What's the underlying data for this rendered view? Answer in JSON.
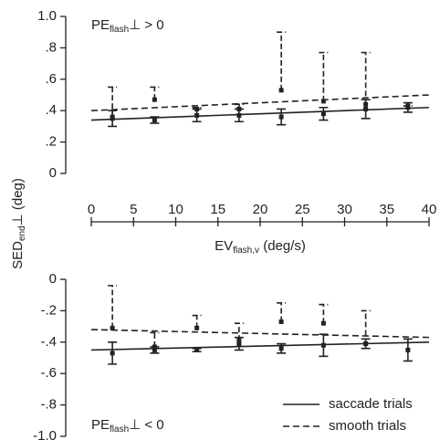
{
  "chart_data": [
    {
      "type": "errorbar",
      "annotation": {
        "main": "PE",
        "sub": "flash",
        "rest": "⊥ > 0"
      },
      "xlabel": {
        "main": "EV",
        "sub": "flash,v",
        "rest": " (deg/s)"
      },
      "ylabel": {
        "main": "SED",
        "sub": "end",
        "rest": "⊥ (deg)"
      },
      "xlim": [
        0,
        40
      ],
      "xticks": [
        0,
        5,
        10,
        15,
        20,
        25,
        30,
        35,
        40
      ],
      "ylim": [
        0,
        1
      ],
      "yticks": [
        0,
        {
          "value": 0.2,
          "label": ".2"
        },
        {
          "value": 0.4,
          "label": ".4"
        },
        {
          "value": 0.6,
          "label": ".6"
        },
        {
          "value": 0.8,
          "label": ".8"
        },
        {
          "value": 1,
          "label": "1.0"
        }
      ],
      "x": [
        2.5,
        7.5,
        12.5,
        17.5,
        22.5,
        27.5,
        32.5,
        37.5
      ],
      "series": [
        {
          "line_style": "solid",
          "error_direction": "both",
          "color": "#222222",
          "values": [
            0.35,
            0.34,
            0.37,
            0.37,
            0.36,
            0.38,
            0.41,
            0.42
          ],
          "errors": [
            0.05,
            0.02,
            0.04,
            0.04,
            0.05,
            0.04,
            0.06,
            0.03
          ],
          "fit": {
            "x": [
              0,
              40
            ],
            "y": [
              0.34,
              0.42
            ]
          }
        },
        {
          "line_style": "dashed",
          "error_direction": "up",
          "color": "#222222",
          "values": [
            0.36,
            0.47,
            0.41,
            0.41,
            0.53,
            0.46,
            0.44,
            0.43
          ],
          "errors": [
            0.19,
            0.08,
            0.01,
            0.03,
            0.37,
            0.31,
            0.33,
            0.0
          ],
          "fit": {
            "x": [
              0,
              40
            ],
            "y": [
              0.4,
              0.5
            ]
          }
        }
      ]
    },
    {
      "type": "errorbar",
      "annotation": {
        "main": "PE",
        "sub": "flash",
        "rest": "⊥ < 0"
      },
      "xlim": [
        0,
        40
      ],
      "ylim": [
        -1,
        0
      ],
      "yticks": [
        {
          "value": -1,
          "label": "-1.0"
        },
        {
          "value": -0.8,
          "label": "-.8"
        },
        {
          "value": -0.6,
          "label": "-.6"
        },
        {
          "value": -0.4,
          "label": "-.4"
        },
        {
          "value": -0.2,
          "label": "-.2"
        },
        0
      ],
      "x": [
        2.5,
        7.5,
        12.5,
        17.5,
        22.5,
        27.5,
        32.5,
        37.5
      ],
      "series": [
        {
          "name": "saccade trials",
          "line_style": "solid",
          "error_direction": "both",
          "color": "#222222",
          "values": [
            -0.47,
            -0.45,
            -0.45,
            -0.41,
            -0.44,
            -0.42,
            -0.41,
            -0.45
          ],
          "errors": [
            0.07,
            0.02,
            0.01,
            0.04,
            0.03,
            0.07,
            0.03,
            0.07
          ],
          "fit": {
            "x": [
              0,
              40
            ],
            "y": [
              -0.45,
              -0.4
            ]
          }
        },
        {
          "name": "smooth trials",
          "line_style": "dashed",
          "error_direction": "up",
          "color": "#222222",
          "values": [
            -0.31,
            -0.43,
            -0.31,
            -0.39,
            -0.27,
            -0.28,
            -0.41,
            null
          ],
          "errors": [
            0.27,
            0.09,
            0.08,
            0.11,
            0.12,
            0.12,
            0.21,
            null
          ],
          "fit": {
            "x": [
              0,
              40
            ],
            "y": [
              -0.32,
              -0.37
            ]
          }
        }
      ]
    }
  ]
}
